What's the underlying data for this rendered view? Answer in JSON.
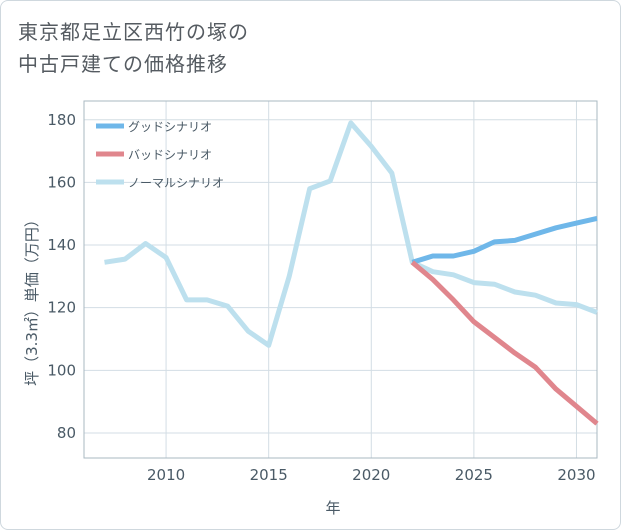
{
  "title_lines": [
    "東京都足立区西竹の塚の",
    "中古戸建ての価格推移"
  ],
  "chart_data": {
    "type": "line",
    "xlabel": "年",
    "ylabel": "坪（3.3㎡）単価（万円）",
    "xlim": [
      2006,
      2031
    ],
    "ylim": [
      72,
      186
    ],
    "xticks": [
      2010,
      2015,
      2020,
      2025,
      2030
    ],
    "yticks": [
      80,
      100,
      120,
      140,
      160,
      180
    ],
    "grid": true,
    "legend_position": "top-left",
    "series": [
      {
        "name": "グッドシナリオ",
        "color": "#6fb7e9",
        "x": [
          2022,
          2023,
          2024,
          2025,
          2026,
          2027,
          2028,
          2029,
          2030,
          2031
        ],
        "y": [
          134.5,
          136.5,
          136.5,
          138,
          141,
          141.5,
          143.5,
          145.5,
          147,
          148.5
        ]
      },
      {
        "name": "バッドシナリオ",
        "color": "#e0868d",
        "x": [
          2022,
          2023,
          2024,
          2025,
          2026,
          2027,
          2028,
          2029,
          2030,
          2031
        ],
        "y": [
          134.5,
          129,
          122.5,
          115.5,
          110.5,
          105.5,
          101,
          94,
          88.5,
          83
        ]
      },
      {
        "name": "ノーマルシナリオ",
        "color": "#bde0ee",
        "x": [
          2007,
          2008,
          2009,
          2010,
          2011,
          2012,
          2013,
          2014,
          2015,
          2016,
          2017,
          2018,
          2019,
          2020,
          2021,
          2022,
          2023,
          2024,
          2025,
          2026,
          2027,
          2028,
          2029,
          2030,
          2031
        ],
        "y": [
          134.5,
          135.5,
          140.5,
          136,
          122.5,
          122.5,
          120.5,
          112.5,
          108,
          130,
          158,
          160.5,
          179,
          171.5,
          163,
          134.5,
          131.5,
          130.5,
          128,
          127.5,
          125,
          124,
          121.5,
          121,
          118.5
        ]
      }
    ]
  }
}
